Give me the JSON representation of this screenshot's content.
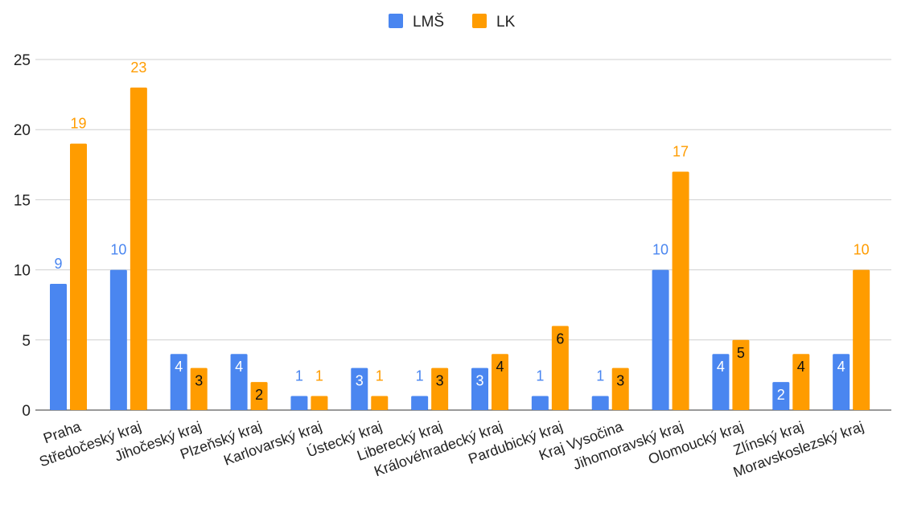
{
  "chart_data": {
    "type": "bar",
    "categories": [
      "Praha",
      "Středočeský kraj",
      "Jihočeský kraj",
      "Plzeňský kraj",
      "Karlovarský kraj",
      "Ústecký kraj",
      "Liberecký kraj",
      "Královéhradecký kraj",
      "Pardubický kraj",
      "Kraj Vysočina",
      "Jihomoravský kraj",
      "Olomoucký kraj",
      "Zlínský kraj",
      "Moravskoslezský kraj"
    ],
    "series": [
      {
        "name": "LMŠ",
        "color": "#4a86f0",
        "values": [
          9,
          10,
          4,
          4,
          1,
          3,
          1,
          3,
          1,
          1,
          10,
          4,
          2,
          4
        ]
      },
      {
        "name": "LK",
        "color": "#ff9c00",
        "values": [
          19,
          23,
          3,
          2,
          1,
          1,
          3,
          4,
          6,
          3,
          17,
          5,
          4,
          10
        ]
      }
    ],
    "title": "",
    "xlabel": "",
    "ylabel": "",
    "ylim": [
      0,
      25
    ],
    "yticks": [
      0,
      5,
      10,
      15,
      20,
      25
    ],
    "grid": true,
    "legend_position": "top"
  }
}
